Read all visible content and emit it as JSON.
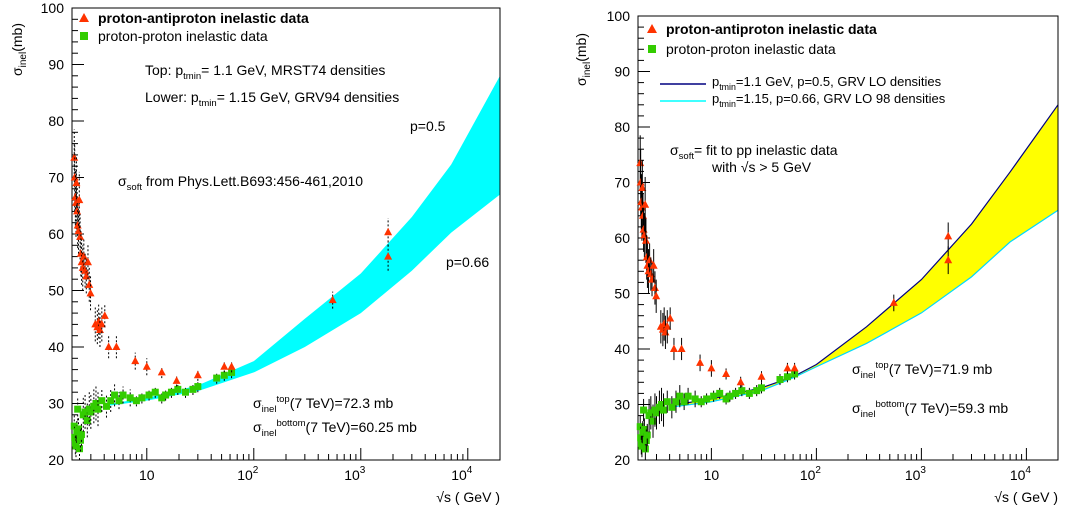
{
  "chart_data": [
    {
      "type": "scatter",
      "id": "left",
      "xlabel": "√s ( GeV )",
      "ylabel": "σ",
      "ylabel_sub": "inel",
      "ylabel_tail": "(mb)",
      "xscale": "log",
      "xlim": [
        2.0,
        20000
      ],
      "ylim": [
        20,
        100
      ],
      "grid": false,
      "x_tick_labels": [
        {
          "x": 10,
          "base": "10",
          "exp": ""
        },
        {
          "x": 100,
          "base": "10",
          "exp": "2"
        },
        {
          "x": 1000,
          "base": "10",
          "exp": "3"
        },
        {
          "x": 10000,
          "base": "10",
          "exp": "4"
        }
      ],
      "y_ticks": [
        20,
        30,
        40,
        50,
        60,
        70,
        80,
        90,
        100
      ],
      "legend": {
        "placement": "top-left",
        "entries": [
          {
            "marker": "triangle",
            "color": "#ff3300",
            "label": "proton-antiproton  inelastic data"
          },
          {
            "marker": "square",
            "color": "#33cc00",
            "label": "proton-proton inelastic data"
          }
        ]
      },
      "annotations": {
        "top_line": {
          "pre": "Top: p",
          "sub": "tmin",
          "post": "= 1.1 GeV, MRST74 densities"
        },
        "lower_line": {
          "pre": "Lower: p",
          "sub": "tmin",
          "post": "= 1.15 GeV, GRV94 densities"
        },
        "soft_line": {
          "pre": "σ",
          "sub": "soft",
          "post": " from Phys.Lett.B693:456-461,2010"
        },
        "p_upper": "p=0.5",
        "p_lower": "p=0.66",
        "sigma_top": {
          "pre": "σ",
          "sub": "inel",
          "sup": "top",
          "post": "(7 TeV)=72.3 mb"
        },
        "sigma_bottom": {
          "pre": "σ",
          "sub": "inel",
          "sup": "bottom",
          "post": "(7 TeV)=60.25 mb"
        }
      },
      "band": {
        "color": "#00ffff",
        "upper": [
          [
            4.0,
            29.8
          ],
          [
            10,
            31.0
          ],
          [
            30,
            33.2
          ],
          [
            100,
            37.5
          ],
          [
            300,
            45.0
          ],
          [
            1000,
            53.0
          ],
          [
            3000,
            63.0
          ],
          [
            7000,
            72.3
          ],
          [
            20000,
            88.0
          ]
        ],
        "lower": [
          [
            4.0,
            29.5
          ],
          [
            10,
            30.5
          ],
          [
            30,
            32.2
          ],
          [
            100,
            35.5
          ],
          [
            300,
            40.0
          ],
          [
            1000,
            46.0
          ],
          [
            3000,
            53.5
          ],
          [
            7000,
            60.25
          ],
          [
            20000,
            67.0
          ]
        ]
      }
    },
    {
      "type": "scatter",
      "id": "right",
      "xlabel": "√s ( GeV )",
      "ylabel": "σ",
      "ylabel_sub": "inel",
      "ylabel_tail": "(mb)",
      "xscale": "log",
      "xlim": [
        2.0,
        20000
      ],
      "ylim": [
        20,
        100
      ],
      "grid": false,
      "x_tick_labels": [
        {
          "x": 10,
          "base": "10",
          "exp": ""
        },
        {
          "x": 100,
          "base": "10",
          "exp": "2"
        },
        {
          "x": 1000,
          "base": "10",
          "exp": "3"
        },
        {
          "x": 10000,
          "base": "10",
          "exp": "4"
        }
      ],
      "y_ticks": [
        20,
        30,
        40,
        50,
        60,
        70,
        80,
        90,
        100
      ],
      "legend": {
        "placement": "top-left",
        "entries": [
          {
            "marker": "triangle",
            "color": "#ff3300",
            "label": "proton-antiproton  inelastic data"
          },
          {
            "marker": "square",
            "color": "#33cc00",
            "label": "proton-proton inelastic data"
          },
          {
            "marker": "line",
            "color": "#000080",
            "label_pre": "p",
            "label_sub": "tmin",
            "label_post": "=1.1 GeV, p=0.5, GRV LO densities"
          },
          {
            "marker": "line",
            "color": "#00ffff",
            "label_pre": "p",
            "label_sub": "tmin",
            "label_post": "=1.15, p=0.66, GRV LO 98 densities"
          }
        ]
      },
      "annotations": {
        "soft_line1": {
          "pre": "σ",
          "sub": "soft",
          "post": "= fit to pp inelastic data"
        },
        "soft_line2": "with √s > 5 GeV",
        "sigma_top": {
          "pre": "σ",
          "sub": "inel",
          "sup": "top",
          "post": "(7 TeV)=71.9 mb"
        },
        "sigma_bottom": {
          "pre": "σ",
          "sub": "inel",
          "sup": "bottom",
          "post": "(7 TeV)=59.3 mb"
        }
      },
      "band": {
        "color": "#ffff00",
        "upper": [
          [
            4.0,
            29.8
          ],
          [
            10,
            31.0
          ],
          [
            30,
            33.0
          ],
          [
            60,
            35.0
          ],
          [
            100,
            37.2
          ],
          [
            300,
            44.0
          ],
          [
            1000,
            52.5
          ],
          [
            3000,
            62.5
          ],
          [
            7000,
            71.9
          ],
          [
            20000,
            84.0
          ]
        ],
        "lower": [
          [
            4.0,
            29.5
          ],
          [
            10,
            30.5
          ],
          [
            30,
            32.5
          ],
          [
            60,
            34.8
          ],
          [
            100,
            36.8
          ],
          [
            300,
            41.0
          ],
          [
            1000,
            46.5
          ],
          [
            3000,
            53.0
          ],
          [
            7000,
            59.3
          ],
          [
            20000,
            65.0
          ]
        ]
      }
    }
  ],
  "ppbar_data": [
    [
      2.1,
      73.5,
      5
    ],
    [
      2.12,
      70.0,
      6
    ],
    [
      2.15,
      66.5,
      5
    ],
    [
      2.18,
      65.5,
      6
    ],
    [
      2.2,
      69.0,
      5
    ],
    [
      2.23,
      64.0,
      4
    ],
    [
      2.26,
      61.5,
      4
    ],
    [
      2.3,
      60.5,
      4
    ],
    [
      2.34,
      66.0,
      5
    ],
    [
      2.38,
      59.5,
      4
    ],
    [
      2.42,
      56.5,
      4
    ],
    [
      2.46,
      55.0,
      4
    ],
    [
      2.52,
      54.0,
      4
    ],
    [
      2.58,
      56.0,
      3
    ],
    [
      2.65,
      53.5,
      3
    ],
    [
      2.72,
      52.5,
      3
    ],
    [
      2.82,
      55.0,
      3
    ],
    [
      2.9,
      51.0,
      3
    ],
    [
      2.98,
      49.5,
      3
    ],
    [
      3.3,
      44.0,
      3
    ],
    [
      3.45,
      43.5,
      3
    ],
    [
      3.55,
      44.5,
      3
    ],
    [
      3.65,
      43.0,
      3
    ],
    [
      3.8,
      44.0,
      3
    ],
    [
      4.05,
      45.5,
      2
    ],
    [
      4.4,
      40.0,
      2
    ],
    [
      5.2,
      40.0,
      2
    ],
    [
      7.8,
      37.5,
      1.5
    ],
    [
      10.0,
      36.5,
      1.5
    ],
    [
      13.8,
      35.5,
      1
    ],
    [
      19.0,
      34.0,
      1
    ],
    [
      30.0,
      35.0,
      1
    ],
    [
      53.0,
      36.5,
      1
    ],
    [
      62.0,
      36.5,
      1
    ],
    [
      546,
      48.3,
      1.5
    ],
    [
      1800,
      60.3,
      2.5
    ],
    [
      1800,
      56.0,
      2.5
    ]
  ],
  "pp_data": [
    [
      2.1,
      26.0,
      2
    ],
    [
      2.12,
      24.0,
      2
    ],
    [
      2.15,
      23.0,
      2
    ],
    [
      2.18,
      22.5,
      2
    ],
    [
      2.22,
      25.0,
      2
    ],
    [
      2.26,
      29.0,
      2
    ],
    [
      2.3,
      25.5,
      2
    ],
    [
      2.35,
      22.0,
      2
    ],
    [
      2.4,
      23.5,
      2
    ],
    [
      2.45,
      24.5,
      2
    ],
    [
      2.55,
      28.0,
      3
    ],
    [
      2.65,
      28.5,
      3
    ],
    [
      2.78,
      27.0,
      3
    ],
    [
      2.9,
      29.0,
      3
    ],
    [
      3.0,
      28.5,
      3
    ],
    [
      3.2,
      29.5,
      3
    ],
    [
      3.35,
      30.0,
      3
    ],
    [
      3.5,
      29.0,
      3
    ],
    [
      3.8,
      30.5,
      2
    ],
    [
      4.2,
      29.5,
      2
    ],
    [
      4.6,
      30.5,
      2
    ],
    [
      5.0,
      31.5,
      2
    ],
    [
      5.5,
      30.5,
      1.5
    ],
    [
      6.0,
      31.5,
      1.5
    ],
    [
      7.0,
      31.0,
      1.5
    ],
    [
      8.0,
      30.5,
      1
    ],
    [
      9.0,
      31.0,
      1
    ],
    [
      10.5,
      31.5,
      1
    ],
    [
      12.0,
      32.0,
      1
    ],
    [
      13.8,
      31.0,
      1
    ],
    [
      15.0,
      31.5,
      1
    ],
    [
      17.0,
      32.0,
      1
    ],
    [
      19.5,
      32.5,
      1
    ],
    [
      23.0,
      32.0,
      1
    ],
    [
      27.0,
      32.5,
      1
    ],
    [
      30.0,
      33.0,
      1
    ],
    [
      45.0,
      34.5,
      1
    ],
    [
      53.0,
      35.0,
      1
    ],
    [
      62.0,
      35.5,
      1
    ]
  ]
}
